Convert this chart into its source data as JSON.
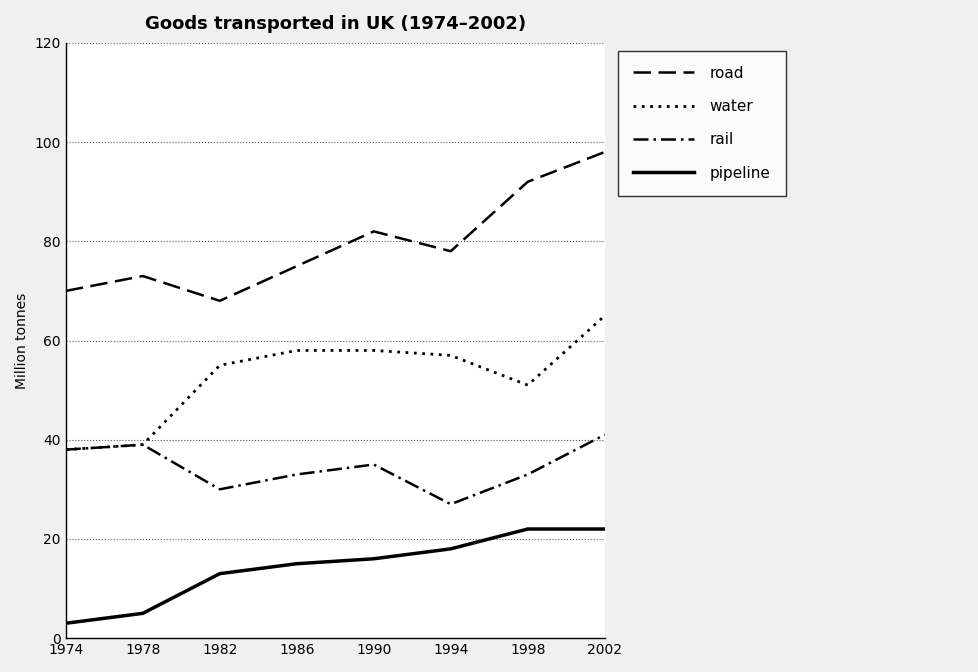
{
  "title": "Goods transported in UK (1974–2002)",
  "ylabel": "Million tonnes",
  "years": [
    1974,
    1978,
    1982,
    1986,
    1990,
    1994,
    1998,
    2002
  ],
  "road": [
    70,
    73,
    68,
    75,
    82,
    78,
    92,
    98
  ],
  "water": [
    38,
    39,
    55,
    58,
    58,
    57,
    51,
    65
  ],
  "rail": [
    38,
    39,
    30,
    33,
    35,
    27,
    33,
    41
  ],
  "pipeline": [
    3,
    5,
    13,
    15,
    16,
    18,
    22,
    22
  ],
  "ylim": [
    0,
    120
  ],
  "yticks": [
    0,
    20,
    40,
    60,
    80,
    100,
    120
  ],
  "xlim": [
    1974,
    2002
  ],
  "xticks": [
    1974,
    1978,
    1982,
    1986,
    1990,
    1994,
    1998,
    2002
  ],
  "grid_color": "#555555",
  "bg_color": "#f0f0f0",
  "plot_bg_color": "#ffffff",
  "line_color": "#000000",
  "title_fontsize": 13,
  "label_fontsize": 10,
  "tick_fontsize": 10,
  "legend_fontsize": 11,
  "road_lw": 1.8,
  "water_lw": 2.0,
  "rail_lw": 1.8,
  "pipeline_lw": 2.5
}
